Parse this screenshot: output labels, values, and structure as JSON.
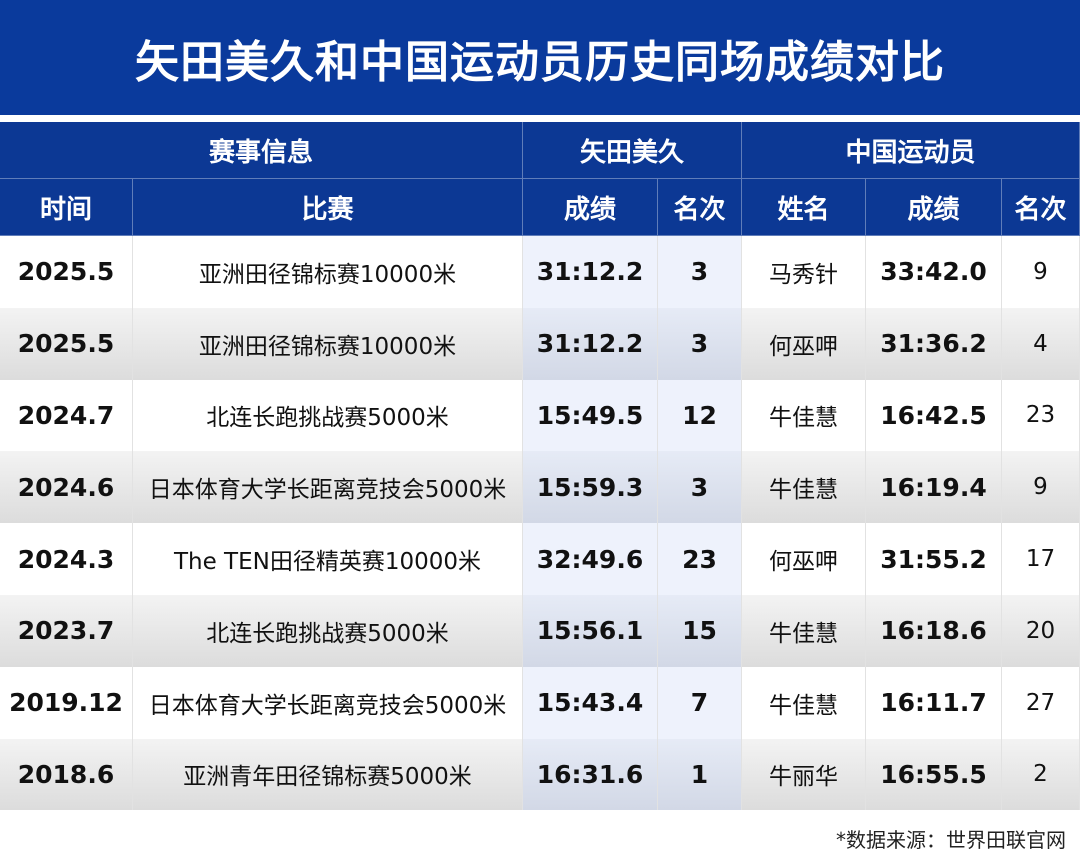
{
  "header": {
    "title": "矢田美久和中国运动员历史同场成绩对比"
  },
  "table": {
    "groups": [
      "赛事信息",
      "矢田美久",
      "中国运动员"
    ],
    "columns": [
      "时间",
      "比赛",
      "成绩",
      "名次",
      "姓名",
      "成绩",
      "名次"
    ],
    "rows": [
      [
        "2025.5",
        "亚洲田径锦标赛10000米",
        "31:12.2",
        3,
        "马秀针",
        "33:42.0",
        9
      ],
      [
        "2025.5",
        "亚洲田径锦标赛10000米",
        "31:12.2",
        3,
        "何巫呷",
        "31:36.2",
        4
      ],
      [
        "2024.7",
        "北连长跑挑战赛5000米",
        "15:49.5",
        12,
        "牛佳慧",
        "16:42.5",
        23
      ],
      [
        "2024.6",
        "日本体育大学长距离竞技会5000米",
        "15:59.3",
        3,
        "牛佳慧",
        "16:19.4",
        9
      ],
      [
        "2024.3",
        "The TEN田径精英赛10000米",
        "32:49.6",
        23,
        "何巫呷",
        "31:55.2",
        17
      ],
      [
        "2023.7",
        "北连长跑挑战赛5000米",
        "15:56.1",
        15,
        "牛佳慧",
        "16:18.6",
        20
      ],
      [
        "2019.12",
        "日本体育大学长距离竞技会5000米",
        "15:43.4",
        7,
        "牛佳慧",
        "16:11.7",
        27
      ],
      [
        "2018.6",
        "亚洲青年田径锦标赛5000米",
        "16:31.6",
        1,
        "牛丽华",
        "16:55.5",
        2
      ]
    ]
  },
  "footer": {
    "note": "*数据来源：世界田联官网"
  }
}
